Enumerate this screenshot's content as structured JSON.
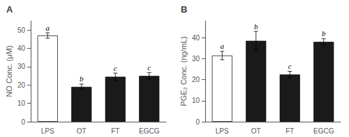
{
  "chart_data": [
    {
      "type": "bar",
      "title": "A",
      "categories": [
        "LPS",
        "OT",
        "FT",
        "EGCG"
      ],
      "values": [
        47.0,
        19.0,
        24.5,
        25.0
      ],
      "errors": [
        1.5,
        1.5,
        2.0,
        1.8
      ],
      "colors": [
        "white",
        "#1a1a1a",
        "#1a1a1a",
        "#1a1a1a"
      ],
      "annotations": [
        "a",
        "b",
        "c",
        "c"
      ],
      "ylabel": "NO Conc. (μM)",
      "ylim": [
        0,
        55
      ],
      "yticks": [
        0,
        10,
        20,
        30,
        40,
        50
      ],
      "grid": false
    },
    {
      "type": "bar",
      "title": "B",
      "categories": [
        "LPS",
        "OT",
        "FT",
        "EGCG"
      ],
      "values": [
        31.5,
        38.5,
        22.5,
        38.0
      ],
      "errors": [
        2.0,
        4.5,
        1.5,
        1.5
      ],
      "colors": [
        "white",
        "#1a1a1a",
        "#1a1a1a",
        "#1a1a1a"
      ],
      "annotations": [
        "a",
        "b",
        "c",
        "b"
      ],
      "ylabel": "PGE₂ Conc. (ng/mL)",
      "ylim": [
        0,
        48
      ],
      "yticks": [
        0,
        10,
        20,
        30,
        40
      ],
      "grid": false
    }
  ]
}
